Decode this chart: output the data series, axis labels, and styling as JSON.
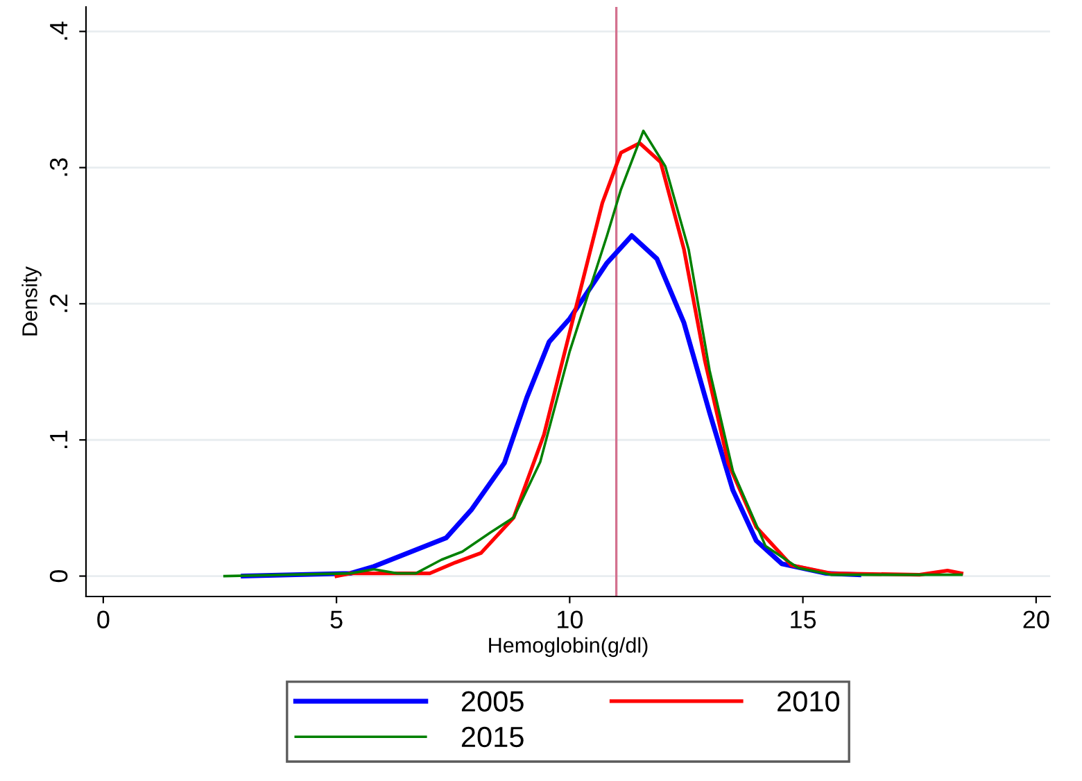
{
  "chart_data": {
    "type": "line",
    "xlabel": "Hemoglobin(g/dl)",
    "ylabel": "Density",
    "xlim": [
      -0.37,
      20.3
    ],
    "xticks": [
      0,
      5,
      10,
      15,
      20
    ],
    "ylim": [
      -0.015,
      0.418
    ],
    "yticks": [
      0,
      {
        "value": 0.1,
        "label": ".1"
      },
      {
        "value": 0.2,
        "label": ".2"
      },
      {
        "value": 0.3,
        "label": ".3"
      },
      {
        "value": 0.4,
        "label": ".4"
      }
    ],
    "grid": "y",
    "legend": "bottom",
    "marker": "none",
    "line_style": "solid",
    "ref_lines": [
      {
        "axis": "x",
        "value": 11,
        "label": null,
        "color": "#d4728f"
      }
    ],
    "series": [
      {
        "name": "2005",
        "color": "#0000ff",
        "x": [
          3.0,
          5.3,
          5.8,
          7.35,
          7.9,
          8.6,
          9.08,
          9.56,
          10.0,
          10.8,
          11.33,
          11.87,
          12.45,
          13.0,
          13.5,
          14.0,
          14.55,
          15.5,
          16.2
        ],
        "values": [
          0.0,
          0.002,
          0.007,
          0.028,
          0.049,
          0.083,
          0.131,
          0.172,
          0.189,
          0.23,
          0.25,
          0.233,
          0.186,
          0.12,
          0.063,
          0.026,
          0.009,
          0.002,
          0.001
        ]
      },
      {
        "name": "2010",
        "color": "#ff0000",
        "x": [
          5.0,
          5.3,
          7.0,
          7.55,
          8.1,
          8.8,
          9.45,
          10.0,
          10.7,
          11.1,
          11.5,
          11.95,
          12.45,
          12.9,
          13.4,
          14.0,
          14.75,
          15.6,
          17.5,
          18.1,
          18.4
        ],
        "values": [
          0.0,
          0.002,
          0.002,
          0.01,
          0.017,
          0.043,
          0.104,
          0.179,
          0.274,
          0.311,
          0.318,
          0.304,
          0.24,
          0.158,
          0.083,
          0.036,
          0.008,
          0.002,
          0.001,
          0.004,
          0.002
        ]
      },
      {
        "name": "2015",
        "color": "#008000",
        "x": [
          2.6,
          5.3,
          5.8,
          6.3,
          6.7,
          7.25,
          7.7,
          8.3,
          8.8,
          9.37,
          10.0,
          10.8,
          11.1,
          11.58,
          12.05,
          12.55,
          13.0,
          13.5,
          14.2,
          14.9,
          15.6,
          18.4
        ],
        "values": [
          0.0,
          0.002,
          0.005,
          0.002,
          0.002,
          0.012,
          0.018,
          0.032,
          0.043,
          0.084,
          0.165,
          0.25,
          0.284,
          0.327,
          0.301,
          0.24,
          0.151,
          0.077,
          0.022,
          0.006,
          0.001,
          0.001
        ]
      }
    ]
  }
}
